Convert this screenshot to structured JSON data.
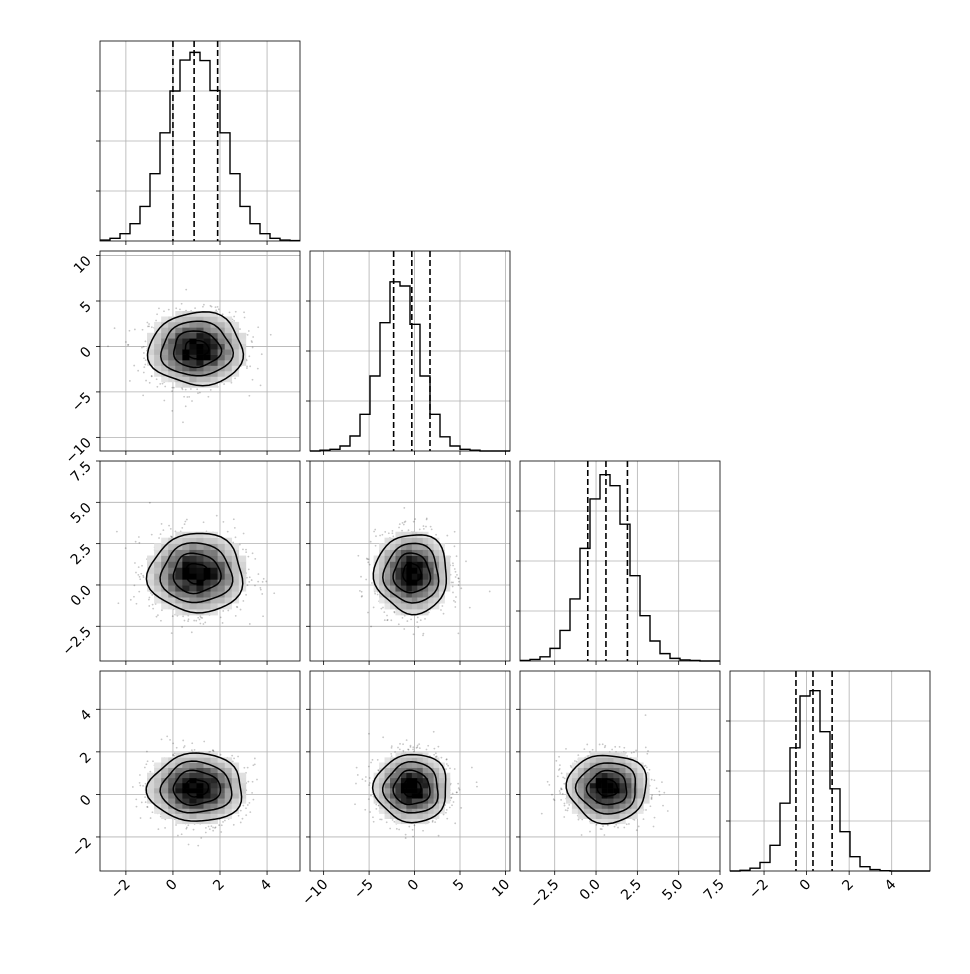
{
  "chart_data": {
    "type": "corner",
    "title": "",
    "n_params": 4,
    "params": [
      {
        "index": 0,
        "center": 1.0,
        "sigma": 1.0,
        "range": [
          -3.1,
          5.4
        ],
        "quantiles": [
          0.0,
          0.9,
          1.9
        ],
        "ticks": [
          -2,
          0,
          2,
          4
        ],
        "tick_labels": [
          "−2",
          "0",
          "2",
          "4"
        ],
        "label": ""
      },
      {
        "index": 1,
        "center": -0.3,
        "sigma": 2.0,
        "range": [
          -11.5,
          10.5
        ],
        "quantiles": [
          -2.3,
          -0.3,
          1.7
        ],
        "ticks": [
          -10,
          -5,
          0,
          5,
          10
        ],
        "tick_labels": [
          "−10",
          "−5",
          "0",
          "5",
          "10"
        ],
        "label": ""
      },
      {
        "index": 2,
        "center": 0.7,
        "sigma": 1.2,
        "range": [
          -4.6,
          7.5
        ],
        "quantiles": [
          -0.5,
          0.6,
          1.9
        ],
        "ticks": [
          -2.5,
          0.0,
          2.5,
          5.0,
          7.5
        ],
        "tick_labels": [
          "−2.5",
          "0.0",
          "2.5",
          "5.0",
          "7.5"
        ],
        "label": ""
      },
      {
        "index": 3,
        "center": 0.3,
        "sigma": 0.8,
        "range": [
          -3.6,
          5.8
        ],
        "quantiles": [
          -0.5,
          0.3,
          1.2
        ],
        "ticks": [
          -2,
          0,
          2,
          4
        ],
        "tick_labels": [
          "−2",
          "0",
          "2",
          "4"
        ],
        "label": ""
      }
    ],
    "histograms": [
      {
        "param": 0,
        "bins": 20,
        "ylim": [
          0,
          0.44
        ],
        "density": [
          0.002,
          0.006,
          0.016,
          0.038,
          0.076,
          0.148,
          0.238,
          0.33,
          0.398,
          0.415,
          0.397,
          0.331,
          0.238,
          0.148,
          0.076,
          0.038,
          0.016,
          0.006,
          0.002,
          0.001
        ]
      },
      {
        "param": 1,
        "bins": 20,
        "ylim": [
          0,
          0.24
        ],
        "density": [
          0.0,
          0.001,
          0.002,
          0.006,
          0.018,
          0.044,
          0.09,
          0.154,
          0.203,
          0.198,
          0.152,
          0.09,
          0.044,
          0.017,
          0.006,
          0.002,
          0.001,
          0.0,
          0.0,
          0.0
        ]
      },
      {
        "param": 2,
        "bins": 20,
        "ylim": [
          0,
          0.38
        ],
        "density": [
          0.001,
          0.003,
          0.008,
          0.024,
          0.058,
          0.118,
          0.214,
          0.308,
          0.354,
          0.333,
          0.26,
          0.162,
          0.086,
          0.038,
          0.014,
          0.005,
          0.002,
          0.001,
          0.0,
          0.0
        ]
      },
      {
        "param": 3,
        "bins": 20,
        "ylim": [
          0,
          0.56
        ],
        "density": [
          0.0,
          0.002,
          0.008,
          0.024,
          0.072,
          0.19,
          0.345,
          0.49,
          0.505,
          0.39,
          0.23,
          0.11,
          0.04,
          0.012,
          0.004,
          0.001,
          0.0,
          0.0,
          0.0,
          0.0
        ]
      }
    ],
    "pair_panels": [
      {
        "x_param": 0,
        "y_param": 1,
        "correlation": 0.0
      },
      {
        "x_param": 0,
        "y_param": 2,
        "correlation": 0.0
      },
      {
        "x_param": 1,
        "y_param": 2,
        "correlation": 0.0
      },
      {
        "x_param": 0,
        "y_param": 3,
        "correlation": 0.0
      },
      {
        "x_param": 1,
        "y_param": 3,
        "correlation": 0.0
      },
      {
        "x_param": 2,
        "y_param": 3,
        "correlation": 0.0
      }
    ],
    "contour_levels_sigma": [
      0.5,
      1.0,
      1.5,
      2.0
    ],
    "grid": true,
    "colors": {
      "ink": "#000000",
      "grid": "#b0b0b0",
      "points": "#000000",
      "frame": "#000000"
    }
  }
}
